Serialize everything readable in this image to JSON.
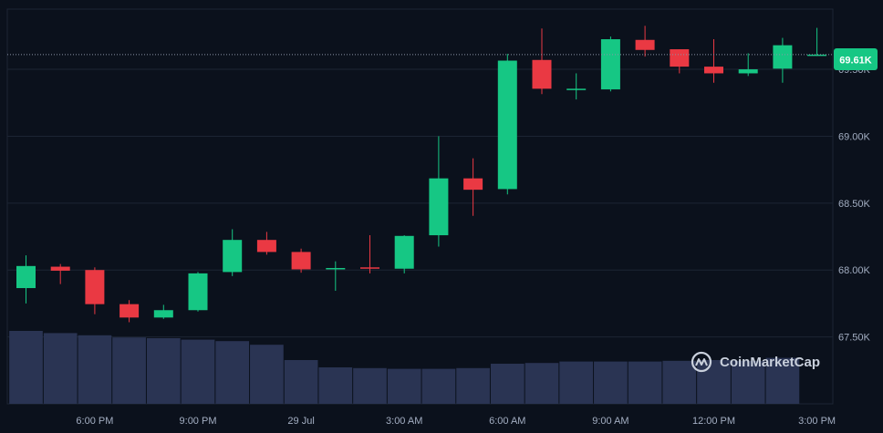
{
  "chart_data": {
    "type": "candlestick",
    "y_ticks": [
      "67.50K",
      "68.00K",
      "68.50K",
      "69.00K",
      "69.50K"
    ],
    "y_tick_values": [
      67500,
      68000,
      68500,
      69000,
      69500
    ],
    "ylim": [
      67000,
      69950
    ],
    "x_ticks": [
      "6:00 PM",
      "9:00 PM",
      "29 Jul",
      "3:00 AM",
      "6:00 AM",
      "9:00 AM",
      "12:00 PM",
      "3:00 PM"
    ],
    "x_tick_index": [
      2,
      5,
      8,
      11,
      14,
      17,
      20,
      23
    ],
    "current_price_label": "69.61K",
    "current_price": 69610,
    "watermark": "CoinMarketCap",
    "colors": {
      "up": "#16c784",
      "down": "#ea3943",
      "volume": "#2a3453",
      "grid": "#1c2533",
      "text": "#a3aec2"
    },
    "candles": [
      {
        "o": 67865,
        "h": 68110,
        "l": 67750,
        "c": 68030
      },
      {
        "o": 68025,
        "h": 68045,
        "l": 67895,
        "c": 67995
      },
      {
        "o": 68000,
        "h": 68020,
        "l": 67670,
        "c": 67745
      },
      {
        "o": 67745,
        "h": 67775,
        "l": 67610,
        "c": 67645
      },
      {
        "o": 67645,
        "h": 67740,
        "l": 67635,
        "c": 67700
      },
      {
        "o": 67700,
        "h": 67985,
        "l": 67690,
        "c": 67975
      },
      {
        "o": 67985,
        "h": 68305,
        "l": 67955,
        "c": 68225
      },
      {
        "o": 68225,
        "h": 68285,
        "l": 68115,
        "c": 68135
      },
      {
        "o": 68135,
        "h": 68160,
        "l": 67980,
        "c": 68005
      },
      {
        "o": 68005,
        "h": 68065,
        "l": 67845,
        "c": 68015
      },
      {
        "o": 68020,
        "h": 68260,
        "l": 67975,
        "c": 68010
      },
      {
        "o": 68010,
        "h": 68260,
        "l": 67975,
        "c": 68255
      },
      {
        "o": 68260,
        "h": 69000,
        "l": 68175,
        "c": 68685
      },
      {
        "o": 68685,
        "h": 68835,
        "l": 68405,
        "c": 68600
      },
      {
        "o": 68605,
        "h": 69615,
        "l": 68565,
        "c": 69565
      },
      {
        "o": 69570,
        "h": 69805,
        "l": 69315,
        "c": 69355
      },
      {
        "o": 69355,
        "h": 69470,
        "l": 69275,
        "c": 69355
      },
      {
        "o": 69350,
        "h": 69745,
        "l": 69335,
        "c": 69725
      },
      {
        "o": 69720,
        "h": 69825,
        "l": 69595,
        "c": 69645
      },
      {
        "o": 69650,
        "h": 69650,
        "l": 69470,
        "c": 69520
      },
      {
        "o": 69520,
        "h": 69725,
        "l": 69400,
        "c": 69470
      },
      {
        "o": 69470,
        "h": 69620,
        "l": 69450,
        "c": 69500
      },
      {
        "o": 69505,
        "h": 69735,
        "l": 69400,
        "c": 69680
      },
      {
        "o": 69610,
        "h": 69810,
        "l": 69600,
        "c": 69610
      }
    ],
    "volume_relative": [
      1.0,
      0.97,
      0.94,
      0.91,
      0.9,
      0.88,
      0.86,
      0.81,
      0.6,
      0.5,
      0.49,
      0.48,
      0.48,
      0.49,
      0.55,
      0.56,
      0.58,
      0.58,
      0.58,
      0.59,
      0.6,
      0.59,
      0.63
    ]
  }
}
